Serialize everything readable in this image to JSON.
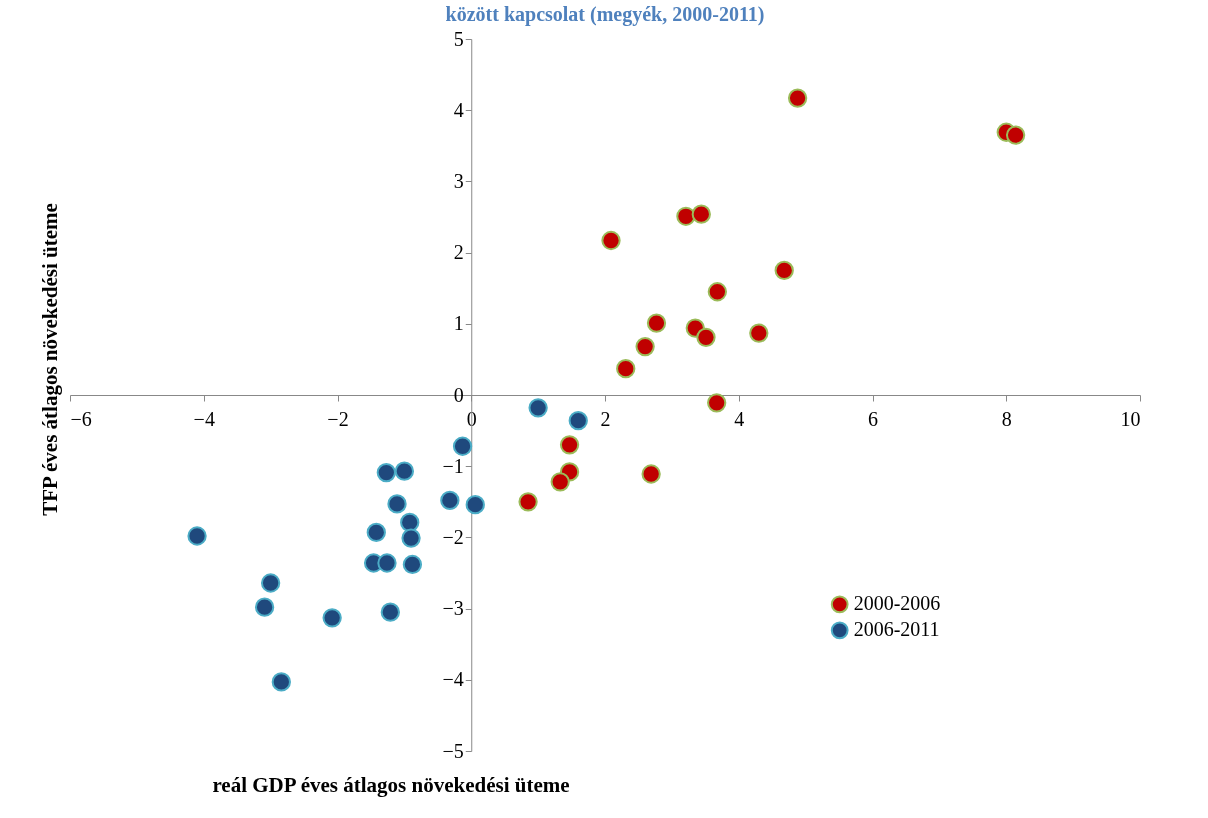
{
  "chart_data": {
    "type": "scatter",
    "title": "között kapcsolat (megyék, 2000-2011)",
    "xlabel": "reál GDP éves átlagos növekedési üteme",
    "ylabel": "TFP éves átlagos növekedési üteme",
    "xlim": [
      -6,
      10
    ],
    "xticks": [
      -6,
      -4,
      -2,
      0,
      2,
      4,
      6,
      8,
      10
    ],
    "ylim": [
      -5,
      5
    ],
    "yticks": [
      -5,
      -4,
      -3,
      -2,
      -1,
      0,
      1,
      2,
      3,
      4,
      5
    ],
    "grid": false,
    "legend": "right",
    "marker": "circle",
    "series": [
      {
        "name": "2000-2006",
        "color": "#c00000",
        "x": [
          4.88,
          8.0,
          8.14,
          3.21,
          3.44,
          2.09,
          4.68,
          3.68,
          2.77,
          3.35,
          3.51,
          4.3,
          2.6,
          2.31,
          3.67,
          1.47,
          1.47,
          2.69,
          1.33,
          0.85
        ],
        "values": [
          4.17,
          3.69,
          3.65,
          2.51,
          2.54,
          2.17,
          1.75,
          1.45,
          1.01,
          0.94,
          0.81,
          0.87,
          0.68,
          0.37,
          -0.11,
          -0.7,
          -1.08,
          -1.11,
          -1.22,
          -1.5
        ]
      },
      {
        "name": "2006-2011",
        "color": "#1f497d",
        "x": [
          1.0,
          1.6,
          -0.13,
          -1.27,
          -1.0,
          -1.11,
          -0.32,
          0.06,
          -0.92,
          -0.9,
          -1.42,
          -4.1,
          -1.46,
          -1.26,
          -0.88,
          -3.0,
          -3.09,
          -2.08,
          -1.21,
          -2.84
        ],
        "values": [
          -0.18,
          -0.36,
          -0.72,
          -1.09,
          -1.07,
          -1.53,
          -1.48,
          -1.54,
          -1.79,
          -2.01,
          -1.93,
          -1.98,
          -2.36,
          -2.36,
          -2.38,
          -2.64,
          -2.98,
          -3.13,
          -3.05,
          -4.03
        ]
      }
    ]
  }
}
